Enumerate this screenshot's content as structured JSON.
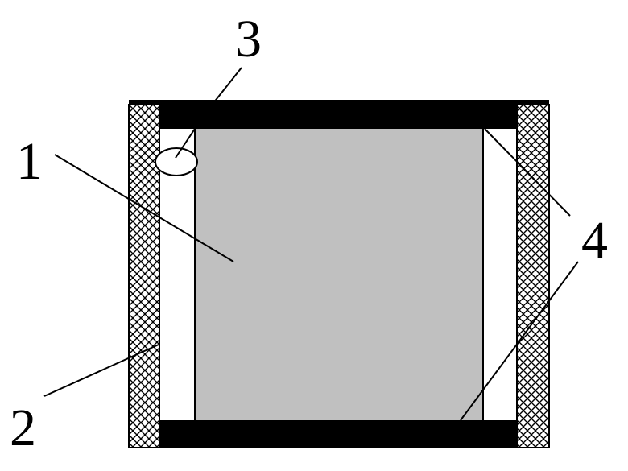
{
  "diagram": {
    "labels": {
      "label_1": "1",
      "label_2": "2",
      "label_3": "3",
      "label_4": "4"
    },
    "colors": {
      "plate": "#000000",
      "core": "#c0c0c0",
      "hatch_fill": "#ffffff",
      "hatch_line": "#000000",
      "outline": "#000000",
      "bubble": "#ffffff"
    }
  }
}
